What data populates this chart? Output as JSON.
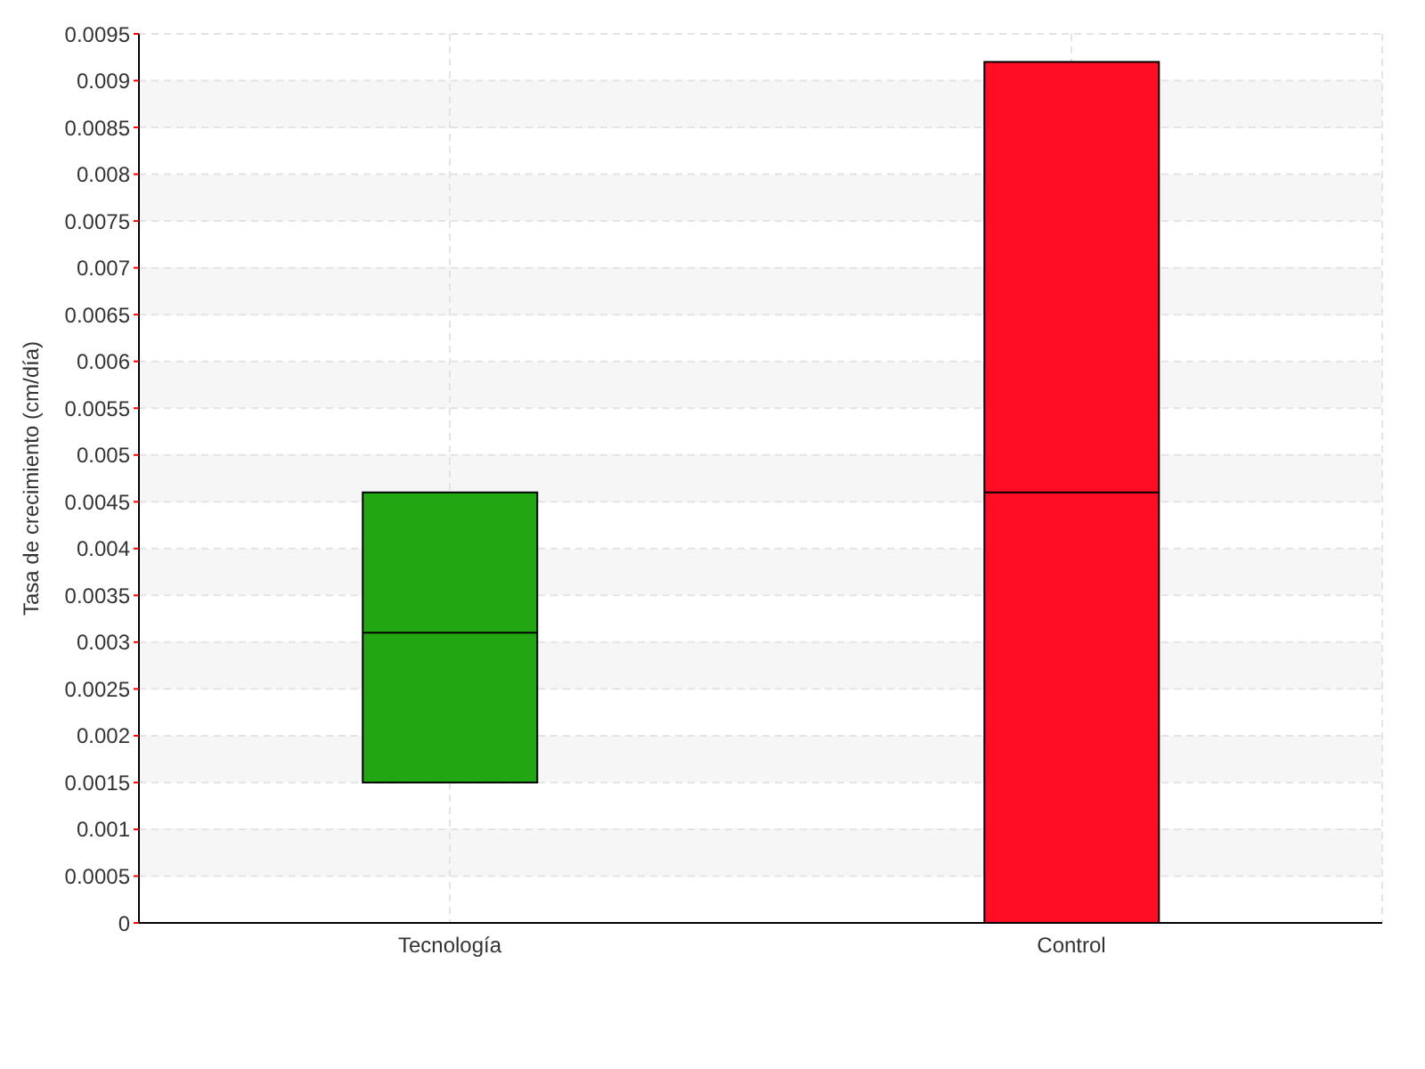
{
  "chart_data": {
    "type": "box",
    "ylabel": "Tasa de crecimiento (cm/día)",
    "categories": [
      "Tecnología",
      "Control"
    ],
    "colors": [
      "#22a712",
      "#ff0d24"
    ],
    "boxes": [
      {
        "low": 0.0015,
        "q1": 0.0015,
        "median": 0.0031,
        "q3": 0.0046,
        "high": 0.0046
      },
      {
        "low": 0,
        "q1": 0,
        "median": 0.0046,
        "q3": 0.0092,
        "high": 0.0092
      }
    ],
    "ylim": [
      0,
      0.0095
    ],
    "yticks": [
      0,
      0.0005,
      0.001,
      0.0015,
      0.002,
      0.0025,
      0.003,
      0.0035,
      0.004,
      0.0045,
      0.005,
      0.0055,
      0.006,
      0.0065,
      0.007,
      0.0075,
      0.008,
      0.0085,
      0.009,
      0.0095
    ],
    "grid": true
  }
}
